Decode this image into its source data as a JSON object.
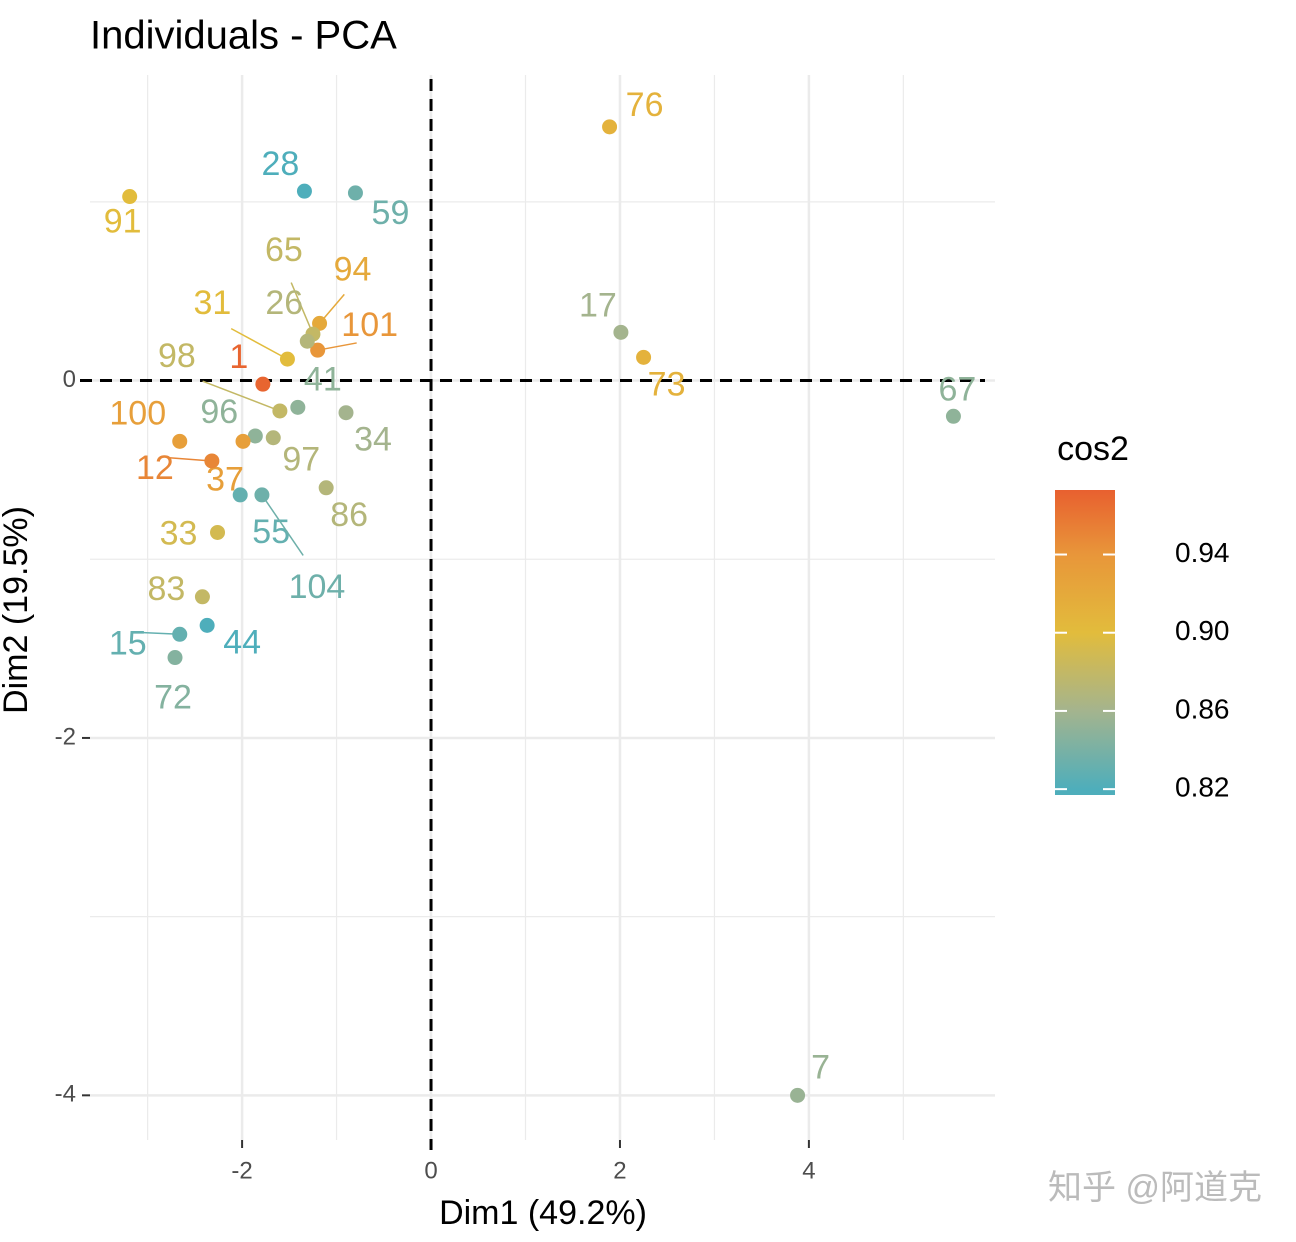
{
  "chart_data": {
    "type": "scatter",
    "title": "Individuals - PCA",
    "xlabel": "Dim1 (49.2%)",
    "ylabel": "Dim2 (19.5%)",
    "xlim": [
      -3.61,
      5.97
    ],
    "ylim": [
      -4.25,
      1.71
    ],
    "xticks": [
      -2,
      0,
      2,
      4
    ],
    "yticks": [
      -4,
      -2,
      0
    ],
    "xminor": [
      -3,
      -1,
      1,
      3,
      5
    ],
    "yminor": [
      -3,
      -1,
      1
    ],
    "grid": true,
    "reference_lines": {
      "x": 0,
      "y": 0
    },
    "labels": [
      "76",
      "28",
      "59",
      "91",
      "17",
      "73",
      "67",
      "94",
      "101",
      "65",
      "26",
      "31",
      "98",
      "1",
      "41",
      "34",
      "100",
      "96",
      "37",
      "97",
      "12",
      "86",
      "55",
      "104",
      "33",
      "83",
      "15",
      "44",
      "72",
      "7"
    ],
    "x": [
      1.89,
      -1.34,
      -0.8,
      -3.19,
      2.01,
      2.25,
      5.53,
      -1.18,
      -1.2,
      -1.25,
      -1.31,
      -1.52,
      -1.6,
      -1.78,
      -1.41,
      -0.9,
      -2.66,
      -1.86,
      -1.99,
      -1.67,
      -2.32,
      -1.11,
      -2.02,
      -1.79,
      -2.26,
      -2.42,
      -2.66,
      -2.37,
      -2.71,
      3.88
    ],
    "y": [
      1.42,
      1.06,
      1.05,
      1.03,
      0.27,
      0.13,
      -0.2,
      0.32,
      0.17,
      0.26,
      0.22,
      0.12,
      -0.17,
      -0.02,
      -0.15,
      -0.18,
      -0.34,
      -0.31,
      -0.34,
      -0.32,
      -0.45,
      -0.6,
      -0.64,
      -0.64,
      -0.85,
      -1.21,
      -1.42,
      -1.37,
      -1.55,
      -4.0
    ],
    "cos2": [
      0.91,
      0.82,
      0.835,
      0.9,
      0.86,
      0.91,
      0.85,
      0.92,
      0.94,
      0.88,
      0.87,
      0.9,
      0.88,
      0.97,
      0.85,
      0.86,
      0.93,
      0.85,
      0.93,
      0.87,
      0.95,
      0.87,
      0.83,
      0.835,
      0.89,
      0.88,
      0.83,
      0.82,
      0.845,
      0.855
    ],
    "colorbar": {
      "title": "cos2",
      "lim": [
        0.817,
        0.973
      ],
      "ticks": [
        0.82,
        0.86,
        {
          "value": 0.9,
          "label": "0.90"
        },
        0.94
      ],
      "colorscale": [
        [
          0.82,
          "#4eaebb"
        ],
        [
          0.86,
          "#a4b48e"
        ],
        [
          0.9,
          "#e2bc3c"
        ],
        [
          0.94,
          "#e8963a"
        ],
        [
          0.973,
          "#e8602f"
        ]
      ]
    },
    "watermark": "知乎 @阿道克"
  }
}
